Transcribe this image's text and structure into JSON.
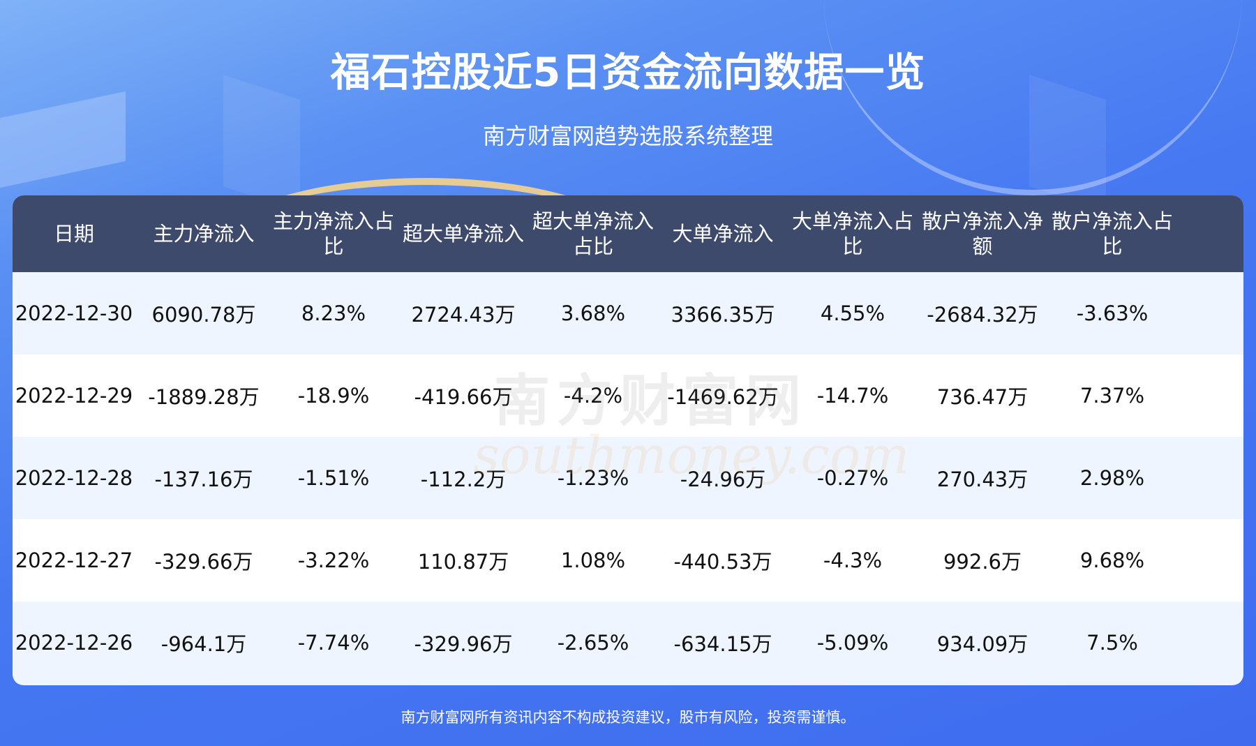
{
  "header": {
    "title": "福石控股近5日资金流向数据一览",
    "subtitle": "南方财富网趋势选股系统整理"
  },
  "table": {
    "columns": [
      "日期",
      "主力净流入",
      "主力净流入占比",
      "超大单净流入",
      "超大单净流入占比",
      "大单净流入",
      "大单净流入占比",
      "散户净流入净额",
      "散户净流入占比"
    ],
    "rows": [
      [
        "2022-12-30",
        "6090.78万",
        "8.23%",
        "2724.43万",
        "3.68%",
        "3366.35万",
        "4.55%",
        "-2684.32万",
        "-3.63%"
      ],
      [
        "2022-12-29",
        "-1889.28万",
        "-18.9%",
        "-419.66万",
        "-4.2%",
        "-1469.62万",
        "-14.7%",
        "736.47万",
        "7.37%"
      ],
      [
        "2022-12-28",
        "-137.16万",
        "-1.51%",
        "-112.2万",
        "-1.23%",
        "-24.96万",
        "-0.27%",
        "270.43万",
        "2.98%"
      ],
      [
        "2022-12-27",
        "-329.66万",
        "-3.22%",
        "110.87万",
        "1.08%",
        "-440.53万",
        "-4.3%",
        "992.6万",
        "9.68%"
      ],
      [
        "2022-12-26",
        "-964.1万",
        "-7.74%",
        "-329.96万",
        "-2.65%",
        "-634.15万",
        "-5.09%",
        "934.09万",
        "7.5%"
      ]
    ]
  },
  "watermark": {
    "cn": "南方财富网",
    "en": "southmoney.com"
  },
  "footer": {
    "disclaimer": "南方财富网所有资讯内容不构成投资建议，股市有风险，投资需谨慎。"
  },
  "colors": {
    "header_bg": "#3d4a6b",
    "row_odd": "#eef5ff",
    "row_even": "#ffffff",
    "background": "#4678f2"
  }
}
